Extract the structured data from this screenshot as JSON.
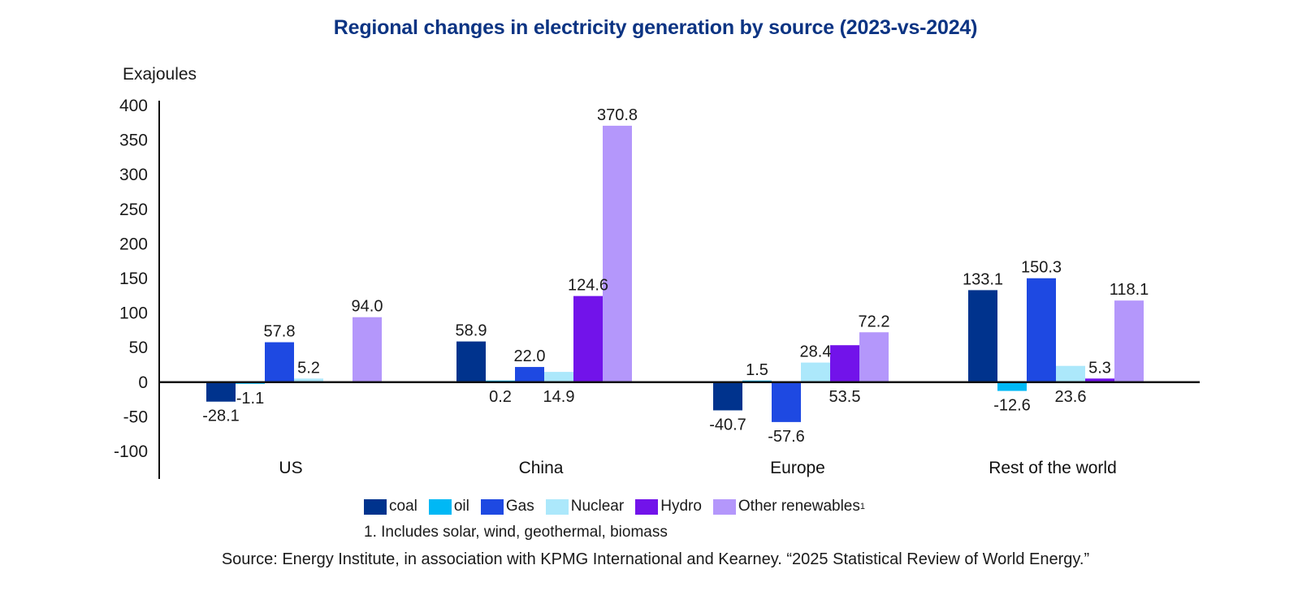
{
  "chart_data": {
    "type": "bar",
    "title": "Regional changes in electricity generation by source (2023-vs-2024)",
    "ylabel": "Exajoules",
    "xlabel": "",
    "ylim": [
      -100,
      400
    ],
    "yticks": [
      400,
      350,
      300,
      250,
      200,
      150,
      100,
      50,
      0,
      -50,
      -100
    ],
    "grid": false,
    "legend_position": "bottom",
    "categories": [
      "US",
      "China",
      "Europe",
      "Rest of the world"
    ],
    "series": [
      {
        "name": "coal",
        "color": "#00338d",
        "values": [
          -28.1,
          58.9,
          -40.7,
          133.1
        ],
        "labels": [
          "-28.1",
          "58.9",
          "-40.7",
          "133.1"
        ],
        "label_pos": [
          "below",
          "above",
          "below",
          "above"
        ]
      },
      {
        "name": "oil",
        "color": "#00b8f5",
        "values": [
          -1.1,
          0.2,
          1.5,
          -12.6
        ],
        "labels": [
          "-1.1",
          "0.2",
          "1.5",
          "-12.6"
        ],
        "label_pos": [
          "below",
          "below",
          "above",
          "below"
        ]
      },
      {
        "name": "Gas",
        "color": "#1e49e2",
        "values": [
          57.8,
          22.0,
          -57.6,
          150.3
        ],
        "labels": [
          "57.8",
          "22.0",
          "-57.6",
          "150.3"
        ],
        "label_pos": [
          "above",
          "above",
          "below",
          "above"
        ]
      },
      {
        "name": "Nuclear",
        "color": "#ace8fb",
        "values": [
          5.2,
          14.9,
          28.4,
          23.6
        ],
        "labels": [
          "5.2",
          "14.9",
          "28.4",
          "23.6"
        ],
        "label_pos": [
          "above",
          "below",
          "above",
          "below"
        ]
      },
      {
        "name": "Hydro",
        "color": "#7213ea",
        "values": [
          null,
          124.6,
          53.5,
          5.3
        ],
        "labels": [
          null,
          "124.6",
          "53.5",
          "5.3"
        ],
        "label_pos": [
          null,
          "above",
          "below",
          "above"
        ]
      },
      {
        "name": "Other renewables",
        "color": "#b497fb",
        "values": [
          94.0,
          370.8,
          72.2,
          118.1
        ],
        "labels": [
          "94.0",
          "370.8",
          "72.2",
          "118.1"
        ],
        "label_pos": [
          "above",
          "above",
          "above",
          "above"
        ]
      }
    ]
  },
  "legend": {
    "items": [
      "coal",
      "oil",
      "Gas",
      "Nuclear",
      "Hydro",
      "Other renewables"
    ],
    "footnote_marker": "1"
  },
  "footnote": "1. Includes solar, wind, geothermal, biomass",
  "source": "Source: Energy Institute, in association with KPMG International and Kearney. “2025 Statistical Review of World Energy.”"
}
